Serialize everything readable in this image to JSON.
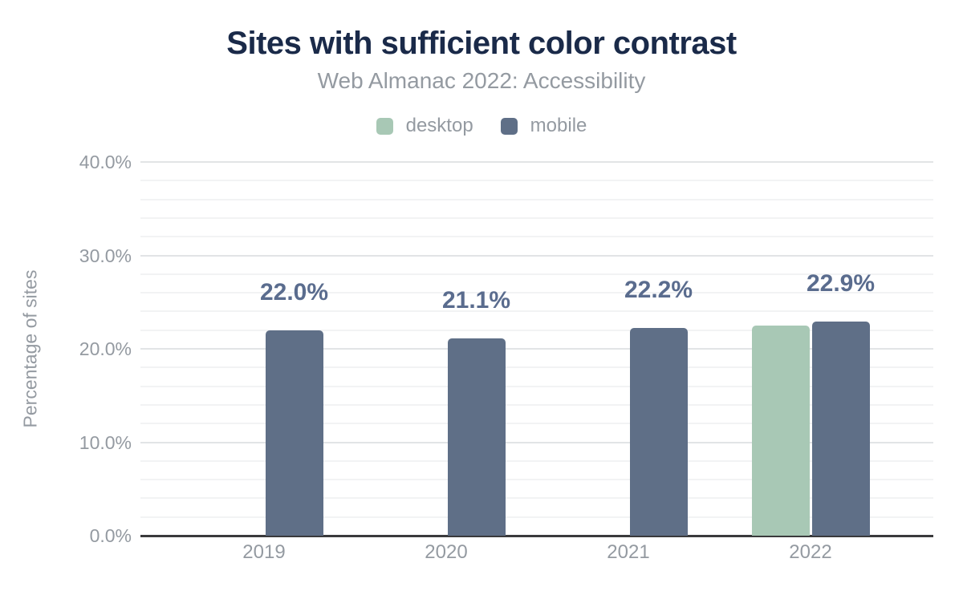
{
  "title": "Sites with sufficient color contrast",
  "subtitle": "Web Almanac 2022: Accessibility",
  "legend": {
    "items": [
      {
        "label": "desktop",
        "color": "#a8c8b5"
      },
      {
        "label": "mobile",
        "color": "#5f6f87"
      }
    ]
  },
  "y_axis": {
    "title": "Percentage of sites",
    "tick_labels": [
      "0.0%",
      "10.0%",
      "20.0%",
      "30.0%",
      "40.0%"
    ]
  },
  "x_axis": {
    "tick_labels": [
      "2019",
      "2020",
      "2021",
      "2022"
    ]
  },
  "colors": {
    "title": "#1a2a49",
    "muted": "#949aa1",
    "annotation": "#5a6c8e",
    "axis-line": "#3a3a3c",
    "grid-major": "#e2e4e6",
    "grid-minor": "#f2f3f4"
  },
  "chart_data": {
    "type": "bar",
    "title": "Sites with sufficient color contrast",
    "subtitle": "Web Almanac 2022: Accessibility",
    "categories": [
      "2019",
      "2020",
      "2021",
      "2022"
    ],
    "series": [
      {
        "name": "desktop",
        "color": "#a8c8b5",
        "values": [
          null,
          null,
          null,
          22.5
        ]
      },
      {
        "name": "mobile",
        "color": "#5f6f87",
        "values": [
          22.0,
          21.1,
          22.2,
          22.9
        ]
      }
    ],
    "annotations": {
      "series": "mobile",
      "labels": [
        "22.0%",
        "21.1%",
        "22.2%",
        "22.9%"
      ]
    },
    "xlabel": "",
    "ylabel": "Percentage of sites",
    "ylim": [
      0,
      40
    ],
    "y_tick_step": 10,
    "y_minor_step": 2,
    "grid": true,
    "legend_position": "top"
  }
}
